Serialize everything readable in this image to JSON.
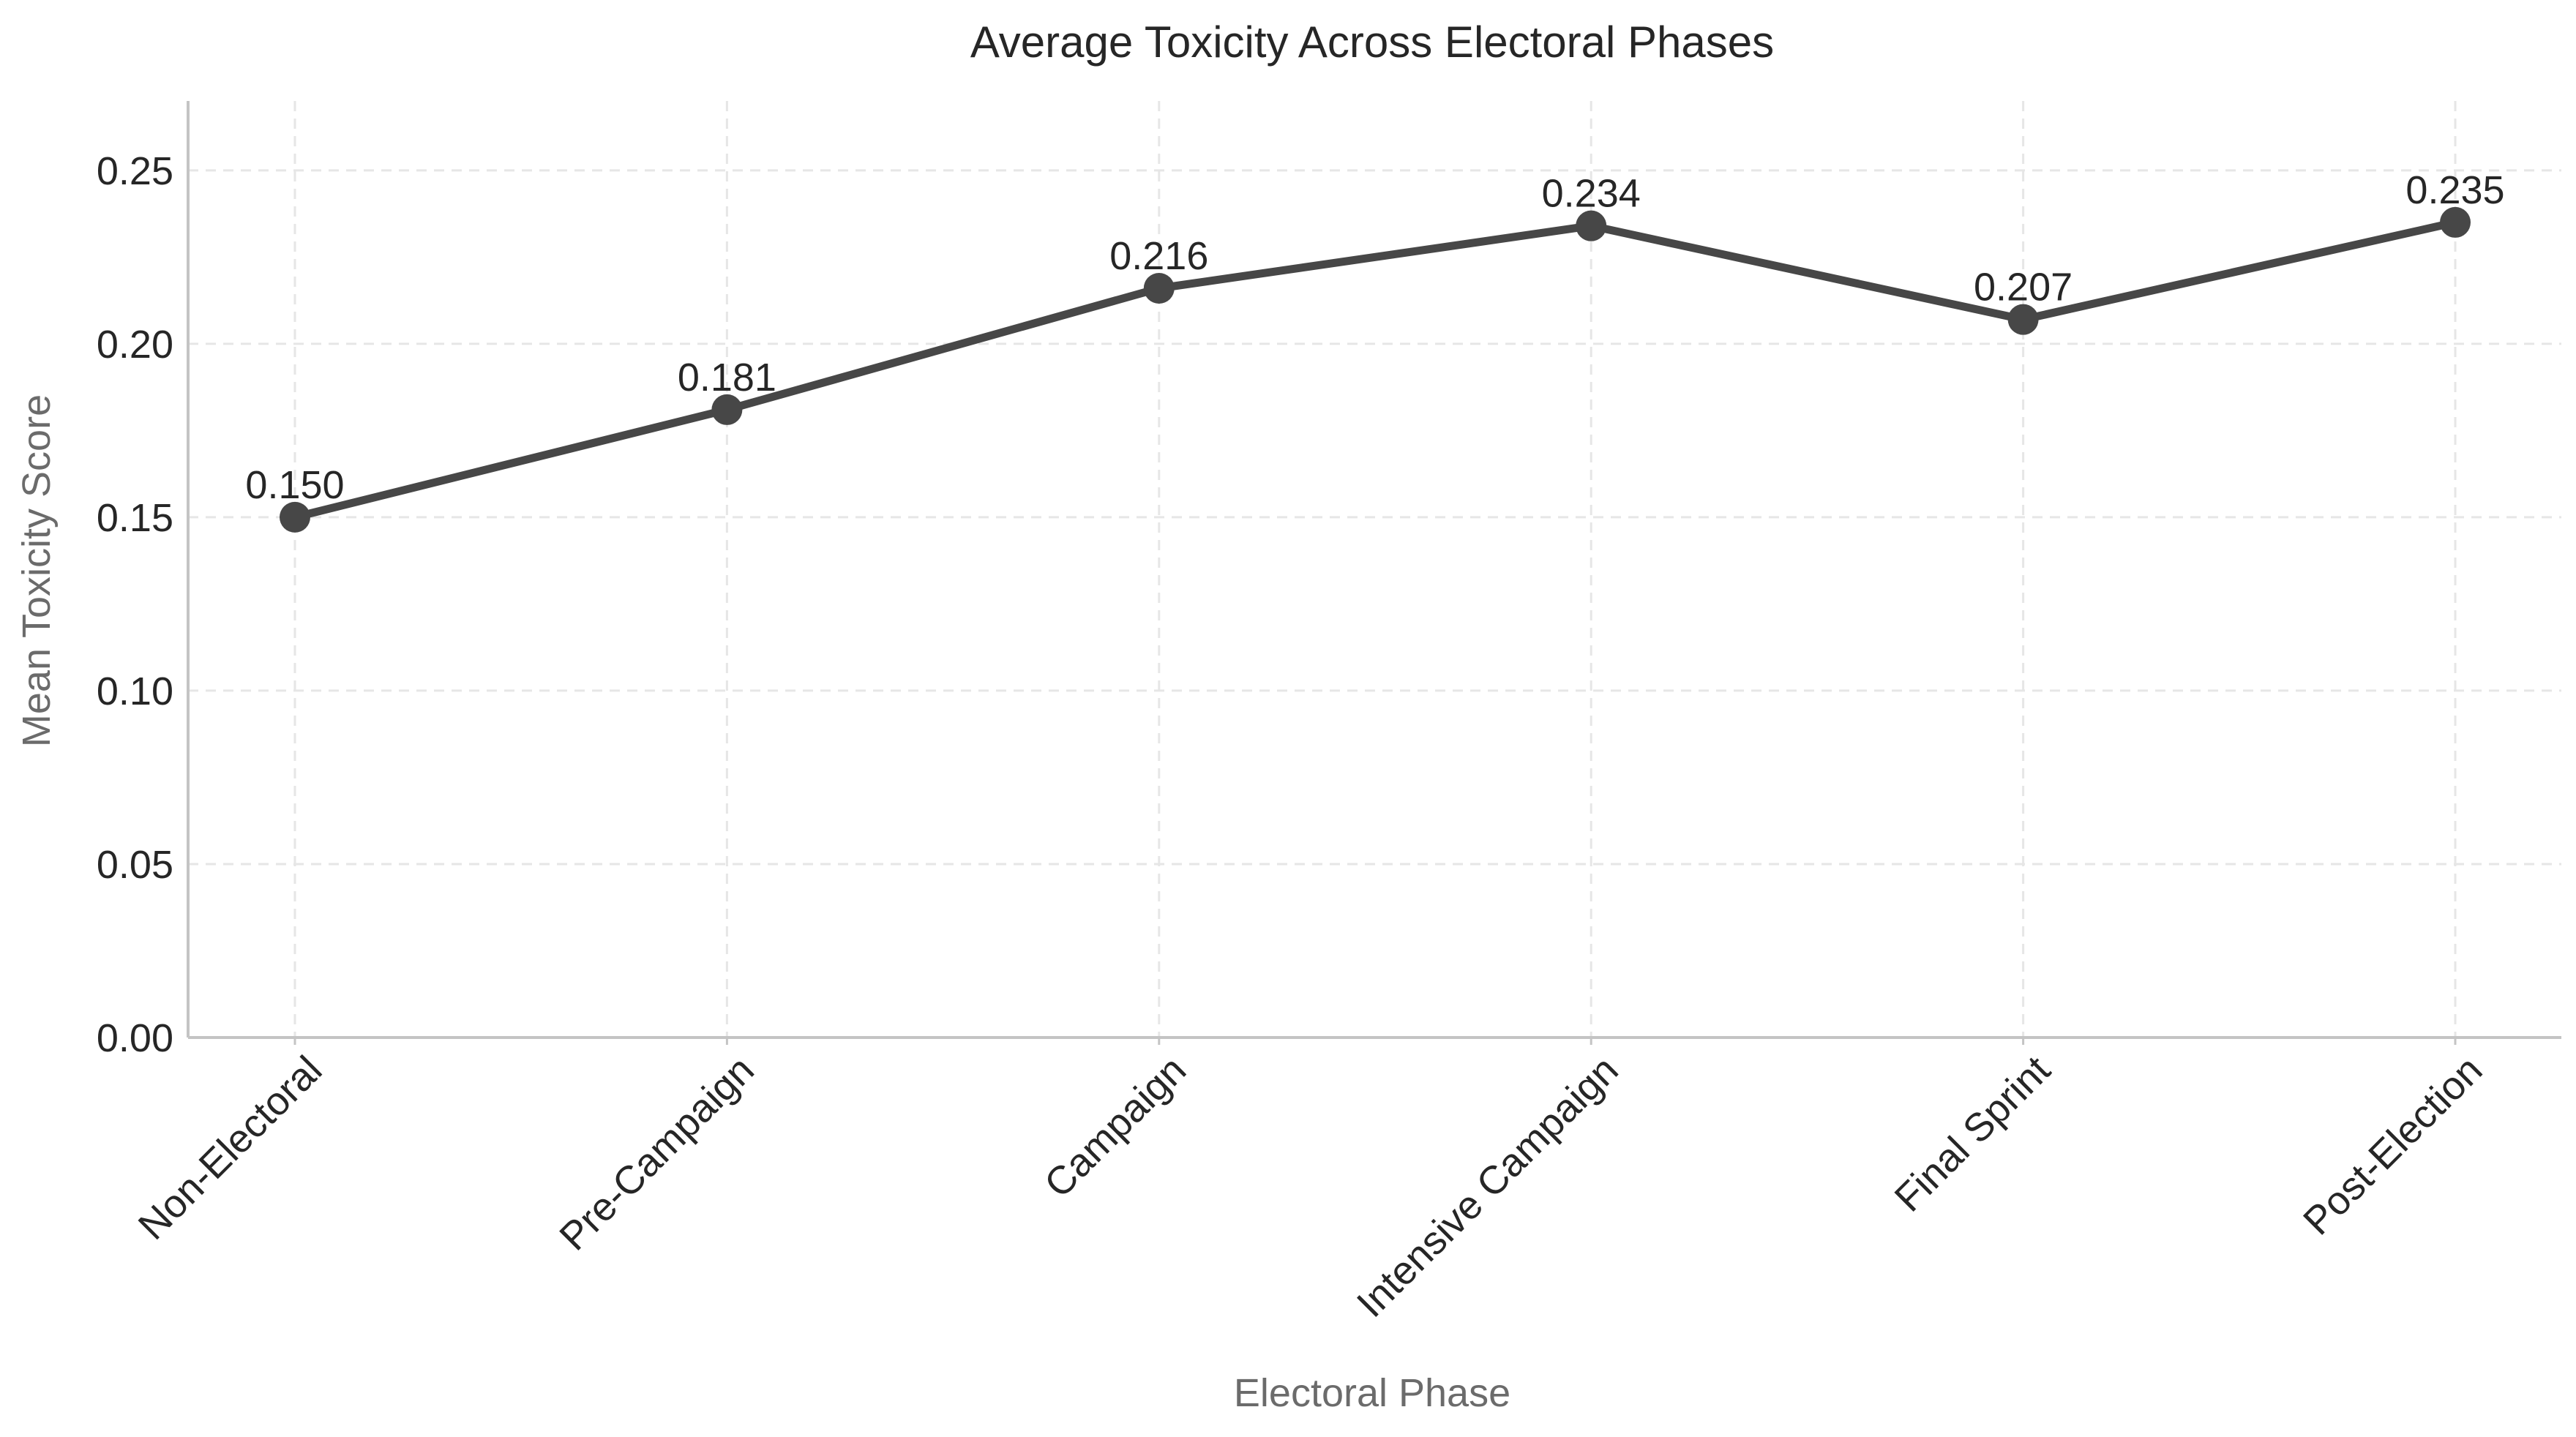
{
  "chart_data": {
    "type": "line",
    "title": "Average Toxicity Across Electoral Phases",
    "xlabel": "Electoral Phase",
    "ylabel": "Mean Toxicity Score",
    "categories": [
      "Non-Electoral",
      "Pre-Campaign",
      "Campaign",
      "Intensive Campaign",
      "Final Sprint",
      "Post-Election"
    ],
    "series": [
      {
        "values": [
          0.15,
          0.181,
          0.216,
          0.234,
          0.207,
          0.235
        ],
        "data_labels": [
          "0.150",
          "0.181",
          "0.216",
          "0.234",
          "0.207",
          "0.235"
        ],
        "color": "#474747",
        "marker": "circle"
      }
    ],
    "ylim": [
      0,
      0.27
    ],
    "yticks": [
      0.0,
      0.05,
      0.1,
      0.15,
      0.2,
      0.25
    ],
    "ytick_labels": [
      "0.00",
      "0.05",
      "0.10",
      "0.15",
      "0.20",
      "0.25"
    ],
    "grid": true,
    "grid_style": "dashed",
    "legend": "none"
  }
}
